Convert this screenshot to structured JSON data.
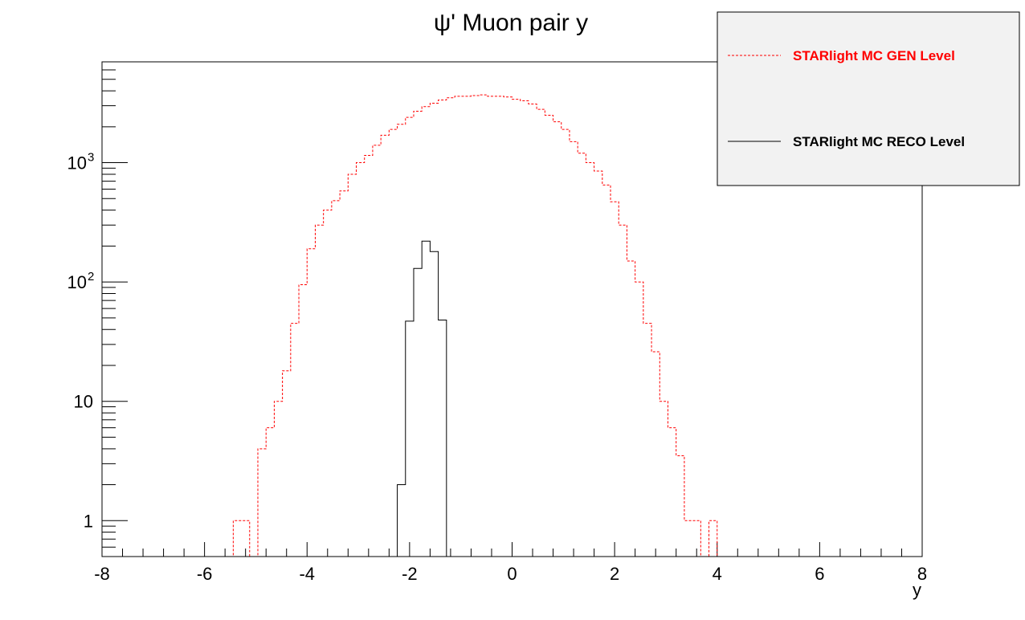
{
  "chart_data": {
    "type": "line",
    "title": "ψ' Muon pair y",
    "xlabel": "y",
    "ylabel": "",
    "xlim": [
      -8,
      8
    ],
    "ylim": [
      0.5,
      7000
    ],
    "yscale": "log",
    "grid": false,
    "legend_position": "top-right",
    "x_ticks": [
      "-8",
      "-6",
      "-4",
      "-2",
      "0",
      "2",
      "4",
      "6",
      "8"
    ],
    "y_ticks": [
      {
        "value": 1,
        "base": "1",
        "exp": ""
      },
      {
        "value": 10,
        "base": "10",
        "exp": ""
      },
      {
        "value": 100,
        "base": "10",
        "exp": "2"
      },
      {
        "value": 1000,
        "base": "10",
        "exp": "3"
      }
    ],
    "bin_edges_start": -8,
    "bin_width": 0.16,
    "series": [
      {
        "name": "STARlight MC GEN Level",
        "color": "#ff0000",
        "style": "dashed",
        "values": [
          0,
          0,
          0,
          0,
          0,
          0,
          0,
          0,
          0,
          0,
          0,
          0,
          0,
          0,
          0,
          0,
          1,
          1,
          0,
          4,
          6,
          10,
          18,
          45,
          95,
          190,
          300,
          400,
          480,
          580,
          800,
          1000,
          1150,
          1400,
          1700,
          1900,
          2100,
          2400,
          2700,
          2950,
          3150,
          3350,
          3500,
          3600,
          3600,
          3650,
          3700,
          3600,
          3600,
          3550,
          3400,
          3300,
          3100,
          2800,
          2500,
          2200,
          1900,
          1500,
          1200,
          1000,
          850,
          650,
          470,
          300,
          150,
          100,
          45,
          26,
          10,
          6,
          3.5,
          1,
          1,
          0,
          1,
          0,
          0,
          0,
          0,
          0,
          0,
          0,
          0,
          0,
          0,
          0,
          0,
          0,
          0,
          0,
          0,
          0,
          0,
          0,
          0,
          0,
          0,
          0,
          0,
          0
        ],
        "values_note": ""
      },
      {
        "name": "STARlight MC RECO Level",
        "color": "#000000",
        "style": "solid",
        "values": [
          0,
          0,
          0,
          0,
          0,
          0,
          0,
          0,
          0,
          0,
          0,
          0,
          0,
          0,
          0,
          0,
          0,
          0,
          0,
          0,
          0,
          0,
          0,
          0,
          0,
          0,
          0,
          0,
          0,
          0,
          0,
          0,
          0,
          0,
          0,
          0,
          2,
          47,
          130,
          220,
          180,
          48,
          0,
          0,
          0,
          0,
          0,
          0,
          0,
          0,
          0,
          0,
          0,
          0,
          0,
          0,
          0,
          0,
          0,
          0,
          0,
          0,
          0,
          0,
          0,
          0,
          0,
          0,
          0,
          0,
          0,
          0,
          0,
          0,
          0,
          0,
          0,
          0,
          0,
          0,
          0,
          0,
          0,
          0,
          0,
          0,
          0,
          0,
          0,
          0,
          0,
          0,
          0,
          0,
          0,
          0,
          0,
          0,
          0,
          0
        ]
      }
    ]
  }
}
